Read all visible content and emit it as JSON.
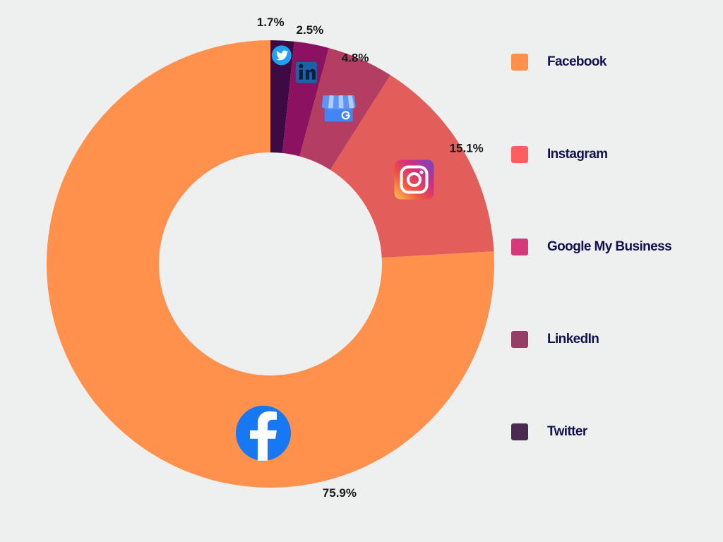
{
  "chart_data": {
    "type": "pie",
    "variant": "donut",
    "categories": [
      "Facebook",
      "Instagram",
      "Google My Business",
      "LinkedIn",
      "Twitter"
    ],
    "values": [
      75.9,
      15.1,
      4.8,
      2.5,
      1.7
    ],
    "value_labels": [
      "75.9%",
      "15.1%",
      "4.8%",
      "2.5%",
      "1.7%"
    ],
    "slice_colors": [
      "#ff914d",
      "#e35d5b",
      "#b33d63",
      "#8c1160",
      "#3d0a44"
    ],
    "legend_colors": [
      "#ff914d",
      "#ff5e5e",
      "#d6397a",
      "#963f66",
      "#4b2a52"
    ],
    "icons": [
      "facebook-logo-icon",
      "instagram-logo-icon",
      "google-my-business-icon",
      "linkedin-logo-icon",
      "twitter-logo-icon"
    ],
    "start": "12 o'clock",
    "direction": "counterclockwise",
    "legend_position": "right"
  }
}
